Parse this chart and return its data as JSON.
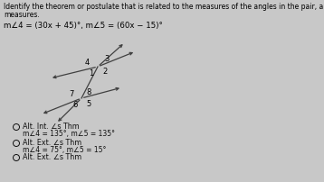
{
  "title_line1": "Identify the theorem or postulate that is related to the measures of the angles in the pair, and find the unknown angle",
  "title_line2": "measures.",
  "equation": "m∠4 = (30x + 45)°, m∠5 = (60x − 15)°",
  "options": [
    {
      "label": "Alt. Int. ∠s Thm",
      "sub": "m∠4 = 135°, m∠5 = 135°"
    },
    {
      "label": "Alt. Ext. ∠s Thm",
      "sub": "m∠4 = 75°, m∠5 = 15°"
    },
    {
      "label": "Alt. Ext. ∠s Thm",
      "sub": ""
    }
  ],
  "bg_color": "#c8c8c8",
  "text_color": "#000000",
  "line_color": "#404040",
  "option_text_color": "#111111",
  "diagram_bg": "#d8d8d8"
}
